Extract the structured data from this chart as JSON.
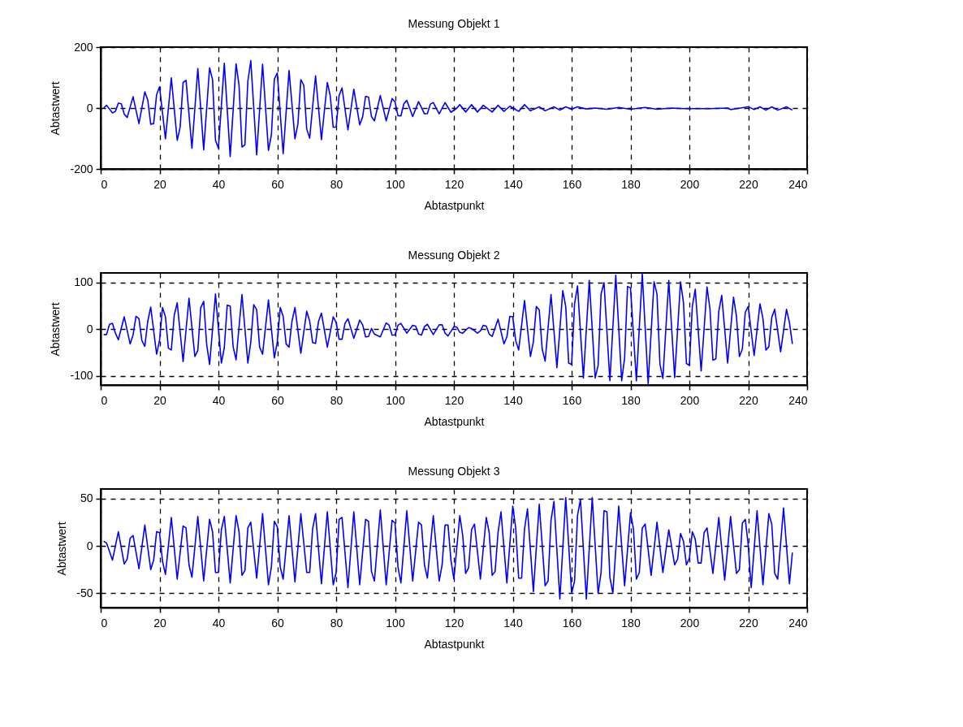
{
  "chart_data": [
    {
      "type": "line",
      "title": "Messung Objekt 1",
      "xlabel": "Abtastpunkt",
      "ylabel": "Abtastwert",
      "color": "#0000ff",
      "xlim": [
        0,
        240
      ],
      "xticks": [
        0,
        20,
        40,
        60,
        80,
        100,
        120,
        140,
        160,
        180,
        200,
        220,
        240
      ],
      "ylim": [
        -200,
        200
      ],
      "yticks": [
        -200,
        0,
        200
      ],
      "grid": true,
      "x": [
        1,
        2,
        4,
        5,
        6,
        7,
        8,
        9,
        11,
        13,
        15,
        16,
        17,
        18,
        19,
        20,
        22,
        24,
        26,
        27,
        28,
        29,
        31,
        33,
        35,
        37,
        38,
        39,
        40,
        42,
        44,
        46,
        47,
        48,
        49,
        50,
        51,
        53,
        55,
        57,
        58,
        59,
        60,
        62,
        64,
        66,
        67,
        68,
        69,
        70,
        71,
        73,
        75,
        77,
        78,
        79,
        80,
        81,
        82,
        84,
        86,
        88,
        89,
        90,
        91,
        92,
        93,
        95,
        97,
        99,
        100,
        101,
        102,
        103,
        104,
        106,
        108,
        110,
        111,
        112,
        113,
        115,
        117,
        119,
        121,
        122,
        124,
        126,
        128,
        130,
        133,
        135,
        137,
        139,
        142,
        144,
        146,
        149,
        151,
        154,
        156,
        158,
        160,
        162,
        165,
        168,
        172,
        176,
        180,
        185,
        189,
        194,
        198,
        207,
        213,
        214,
        216,
        220,
        222,
        224,
        226,
        228,
        230,
        233,
        235
      ],
      "values": [
        0,
        9,
        -16,
        -11,
        16,
        14,
        -20,
        -31,
        37,
        -51,
        53,
        26,
        -53,
        -51,
        44,
        70,
        -101,
        99,
        -106,
        -63,
        84,
        91,
        -132,
        130,
        -137,
        132,
        93,
        -106,
        -132,
        147,
        -159,
        145,
        75,
        -128,
        -121,
        88,
        156,
        -154,
        144,
        -139,
        -88,
        95,
        115,
        -150,
        123,
        -101,
        -53,
        93,
        75,
        -69,
        -99,
        106,
        -104,
        84,
        40,
        -63,
        -62,
        41,
        66,
        -72,
        62,
        -55,
        -29,
        38,
        36,
        -28,
        -42,
        41,
        -42,
        31,
        20,
        -25,
        -26,
        14,
        25,
        -28,
        21,
        -19,
        -18,
        13,
        18,
        -19,
        18,
        -14,
        0,
        11,
        -13,
        11,
        -13,
        9,
        -13,
        9,
        -11,
        6,
        -11,
        11,
        -9,
        4,
        -9,
        4,
        -7,
        4,
        -4,
        4,
        -3,
        0,
        -4,
        2,
        -4,
        2,
        -4,
        0,
        -2,
        -2,
        0,
        -5,
        -2,
        4,
        -5,
        4,
        -7,
        4,
        -7,
        4,
        -7
      ]
    },
    {
      "type": "line",
      "title": "Messung Objekt 2",
      "xlabel": "Abtastpunkt",
      "ylabel": "Abtastwert",
      "color": "#0000ff",
      "xlim": [
        0,
        240
      ],
      "xticks": [
        0,
        20,
        40,
        60,
        80,
        100,
        120,
        140,
        160,
        180,
        200,
        220,
        240
      ],
      "ylim": [
        -120,
        120
      ],
      "yticks": [
        -100,
        0,
        100
      ],
      "grid": true,
      "x": [
        1,
        2,
        3,
        4,
        5,
        6,
        8,
        10,
        11,
        12,
        13,
        14,
        15,
        16,
        17,
        19,
        20,
        21,
        22,
        23,
        24,
        25,
        26,
        28,
        30,
        32,
        33,
        34,
        35,
        36,
        37,
        39,
        41,
        42,
        43,
        44,
        45,
        46,
        48,
        50,
        51,
        52,
        53,
        54,
        55,
        57,
        59,
        60,
        61,
        62,
        63,
        64,
        65,
        66,
        68,
        70,
        71,
        72,
        73,
        74,
        75,
        77,
        79,
        80,
        81,
        82,
        83,
        84,
        86,
        88,
        89,
        90,
        91,
        92,
        93,
        95,
        97,
        98,
        99,
        100,
        101,
        102,
        104,
        106,
        107,
        108,
        109,
        110,
        111,
        113,
        115,
        116,
        117,
        118,
        120,
        121,
        122,
        123,
        125,
        126,
        128,
        129,
        130,
        131,
        132,
        133,
        135,
        137,
        138,
        139,
        140,
        141,
        142,
        144,
        146,
        147,
        148,
        149,
        150,
        151,
        153,
        155,
        157,
        158,
        159,
        160,
        161,
        162,
        164,
        166,
        168,
        169,
        170,
        171,
        173,
        175,
        177,
        178,
        179,
        180,
        182,
        184,
        186,
        188,
        189,
        190,
        191,
        193,
        195,
        197,
        198,
        199,
        200,
        201,
        202,
        204,
        206,
        207,
        208,
        209,
        210,
        211,
        213,
        215,
        216,
        217,
        218,
        219,
        220,
        222,
        224,
        225,
        226,
        227,
        228,
        229,
        231,
        233,
        234,
        235
      ],
      "values": [
        -12,
        -12,
        10,
        12,
        -9,
        -23,
        26,
        -32,
        -13,
        27,
        22,
        -25,
        -37,
        17,
        47,
        -54,
        -24,
        46,
        26,
        -41,
        -45,
        30,
        56,
        -70,
        66,
        -59,
        -46,
        46,
        59,
        -33,
        -76,
        75,
        -73,
        -40,
        51,
        49,
        -38,
        -66,
        74,
        -73,
        -28,
        52,
        41,
        -39,
        -54,
        62,
        -62,
        -28,
        46,
        27,
        -32,
        -39,
        17,
        46,
        -52,
        38,
        17,
        -29,
        -31,
        16,
        34,
        -39,
        26,
        14,
        -22,
        -22,
        12,
        22,
        -20,
        19,
        9,
        -17,
        -16,
        1,
        -11,
        -17,
        13,
        8,
        -13,
        -13,
        8,
        12,
        -9,
        8,
        6,
        -11,
        -13,
        5,
        10,
        -12,
        9,
        9,
        -9,
        -15,
        5,
        4,
        -7,
        -9,
        3,
        1,
        -9,
        -4,
        8,
        6,
        -11,
        -16,
        21,
        -32,
        -17,
        27,
        26,
        -25,
        -45,
        61,
        -59,
        -28,
        48,
        41,
        -43,
        -69,
        74,
        -83,
        82,
        48,
        -73,
        -76,
        54,
        92,
        -105,
        104,
        -105,
        -78,
        75,
        99,
        -111,
        115,
        -111,
        -62,
        91,
        88,
        -111,
        118,
        -117,
        101,
        75,
        -75,
        -106,
        104,
        -104,
        101,
        56,
        -74,
        -78,
        48,
        85,
        -90,
        90,
        43,
        -67,
        -64,
        38,
        72,
        -73,
        68,
        27,
        -59,
        -43,
        36,
        48,
        -57,
        54,
        22,
        -45,
        -38,
        25,
        42,
        -49,
        42,
        14,
        -32
      ]
    },
    {
      "type": "line",
      "title": "Messung Objekt 3",
      "xlabel": "Abtastpunkt",
      "ylabel": "Abtastwert",
      "color": "#0000ff",
      "xlim": [
        0,
        240
      ],
      "xticks": [
        0,
        20,
        40,
        60,
        80,
        100,
        120,
        140,
        160,
        180,
        200,
        220,
        240
      ],
      "ylim": [
        -65,
        60
      ],
      "yticks": [
        -50,
        0,
        50
      ],
      "grid": true,
      "x": [
        1,
        2,
        4,
        6,
        8,
        9,
        10,
        11,
        13,
        15,
        17,
        18,
        19,
        20,
        21,
        22,
        24,
        26,
        28,
        29,
        30,
        31,
        33,
        35,
        37,
        38,
        39,
        40,
        41,
        42,
        44,
        46,
        47,
        48,
        49,
        50,
        51,
        53,
        55,
        57,
        58,
        59,
        60,
        61,
        62,
        64,
        66,
        68,
        70,
        71,
        72,
        73,
        75,
        77,
        79,
        80,
        81,
        82,
        84,
        86,
        88,
        90,
        91,
        92,
        93,
        95,
        97,
        99,
        100,
        101,
        102,
        104,
        106,
        108,
        109,
        110,
        111,
        113,
        115,
        116,
        117,
        118,
        119,
        120,
        122,
        123,
        124,
        125,
        126,
        127,
        129,
        131,
        132,
        133,
        134,
        135,
        136,
        138,
        140,
        141,
        142,
        143,
        144,
        145,
        147,
        149,
        151,
        152,
        153,
        154,
        156,
        158,
        160,
        161,
        162,
        163,
        165,
        167,
        169,
        170,
        171,
        172,
        173,
        174,
        176,
        178,
        180,
        181,
        182,
        183,
        184,
        185,
        187,
        189,
        191,
        193,
        195,
        196,
        197,
        198,
        199,
        200,
        201,
        202,
        203,
        204,
        205,
        206,
        208,
        210,
        212,
        214,
        216,
        217,
        218,
        219,
        220,
        221,
        223,
        225,
        227,
        228,
        229,
        230,
        232,
        234,
        235
      ],
      "values": [
        5,
        3,
        -15,
        15,
        -19,
        -14,
        8,
        11,
        -24,
        22,
        -25,
        -15,
        15,
        14,
        -16,
        -30,
        30,
        -35,
        21,
        19,
        -20,
        -33,
        31,
        -37,
        28,
        15,
        -28,
        -28,
        17,
        31,
        -39,
        32,
        15,
        -31,
        -26,
        19,
        25,
        -34,
        34,
        -41,
        -22,
        26,
        20,
        -22,
        -35,
        32,
        -38,
        34,
        -28,
        -28,
        18,
        34,
        -40,
        36,
        -41,
        -28,
        28,
        30,
        -44,
        36,
        -41,
        28,
        26,
        -27,
        -37,
        38,
        -41,
        27,
        24,
        -22,
        -39,
        37,
        -37,
        25,
        22,
        -20,
        -34,
        32,
        -37,
        -20,
        22,
        22,
        -15,
        -35,
        32,
        11,
        -29,
        -23,
        17,
        23,
        -35,
        30,
        14,
        -31,
        -27,
        14,
        36,
        -39,
        42,
        19,
        -34,
        -34,
        18,
        39,
        -48,
        44,
        -42,
        -37,
        27,
        47,
        -56,
        51,
        -50,
        -37,
        32,
        49,
        -56,
        51,
        -50,
        -28,
        37,
        36,
        -33,
        -50,
        42,
        -42,
        35,
        18,
        -35,
        -28,
        19,
        23,
        -31,
        25,
        -28,
        17,
        -20,
        -14,
        13,
        5,
        -20,
        -13,
        15,
        7,
        -18,
        -18,
        14,
        19,
        -29,
        30,
        -36,
        31,
        -29,
        -25,
        24,
        28,
        1,
        -44,
        37,
        -41,
        34,
        23,
        -29,
        -35,
        40,
        -40,
        -7
      ]
    }
  ]
}
